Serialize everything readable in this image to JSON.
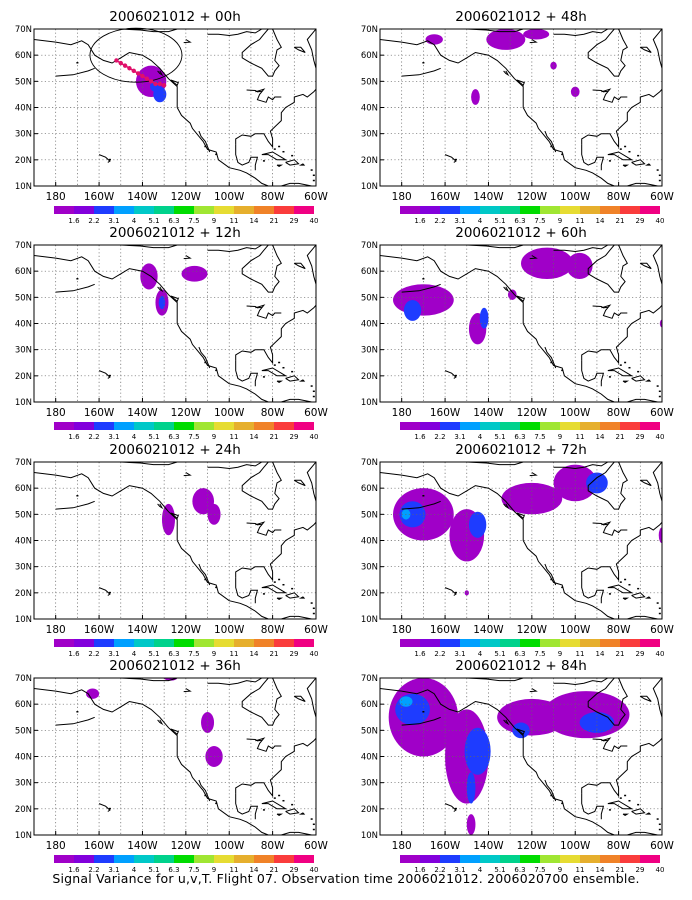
{
  "figure": {
    "caption": "Signal Variance for u,v,T. Flight 07. Observation time 2006021012. 2006020700 ensemble.",
    "axis_labels": {
      "y": [
        "10N",
        "20N",
        "30N",
        "40N",
        "50N",
        "60N",
        "70N"
      ],
      "x": [
        "180",
        "160W",
        "140W",
        "120W",
        "100W",
        "80W",
        "60W"
      ]
    },
    "colorbar": {
      "labels": [
        "1.6",
        "2.2",
        "3.1",
        "4",
        "5.1",
        "6.3",
        "7.5",
        "9",
        "11",
        "14",
        "21",
        "29",
        "40"
      ],
      "colors": [
        "#a000c8",
        "#8200dc",
        "#1e3cff",
        "#00a0ff",
        "#00c8c8",
        "#00d28c",
        "#00dc00",
        "#a0e632",
        "#e6dc32",
        "#e6af2d",
        "#f08228",
        "#fa3c3c",
        "#f00082"
      ]
    },
    "grid": "dotted",
    "panels": [
      {
        "title": "2006021012 + 00h",
        "col": 0,
        "row": 0,
        "track_color": "#e0106a",
        "blobs": [
          [
            -136,
            50,
            7,
            6,
            0
          ],
          [
            -132,
            45,
            3,
            3,
            1
          ],
          [
            -134,
            48,
            2.5,
            2,
            1
          ]
        ]
      },
      {
        "title": "2006021012 + 12h",
        "col": 0,
        "row": 1,
        "blobs": [
          [
            -137,
            58,
            4,
            5,
            0
          ],
          [
            -131,
            48,
            3,
            5,
            0
          ],
          [
            -131,
            48,
            1.5,
            2.5,
            1
          ],
          [
            -116,
            59,
            6,
            3,
            0
          ]
        ]
      },
      {
        "title": "2006021012 + 24h",
        "col": 0,
        "row": 2,
        "blobs": [
          [
            -128,
            48,
            3,
            6,
            0
          ],
          [
            -112,
            55,
            5,
            5,
            0
          ],
          [
            -107,
            50,
            3,
            4,
            0
          ]
        ]
      },
      {
        "title": "2006021012 + 36h",
        "col": 0,
        "row": 3,
        "blobs": [
          [
            -163,
            64,
            3,
            2,
            0
          ],
          [
            -110,
            53,
            3,
            4,
            0
          ],
          [
            -107,
            40,
            4,
            4,
            0
          ],
          [
            -127,
            70,
            3,
            1,
            0
          ]
        ]
      },
      {
        "title": "2006021012 + 48h",
        "col": 1,
        "row": 0,
        "blobs": [
          [
            -165,
            66,
            4,
            2,
            0
          ],
          [
            -132,
            66,
            9,
            4,
            0
          ],
          [
            -118,
            68,
            6,
            2,
            0
          ],
          [
            -146,
            44,
            2,
            3,
            0
          ],
          [
            -100,
            46,
            2,
            2,
            0
          ],
          [
            -110,
            56,
            1.5,
            1.5,
            0
          ]
        ]
      },
      {
        "title": "2006021012 + 60h",
        "col": 1,
        "row": 1,
        "blobs": [
          [
            -170,
            49,
            14,
            6,
            0
          ],
          [
            -175,
            45,
            4,
            4,
            1
          ],
          [
            -145,
            38,
            4,
            6,
            0
          ],
          [
            -142,
            42,
            2,
            4,
            1
          ],
          [
            -113,
            63,
            12,
            6,
            0
          ],
          [
            -98,
            62,
            6,
            5,
            0
          ],
          [
            -129,
            51,
            2,
            2,
            0
          ],
          [
            -60,
            40,
            1,
            1.5,
            0
          ]
        ]
      },
      {
        "title": "2006021012 + 72h",
        "col": 1,
        "row": 2,
        "blobs": [
          [
            -170,
            50,
            14,
            10,
            0
          ],
          [
            -175,
            50,
            6,
            5,
            1
          ],
          [
            -178,
            50,
            2,
            2,
            2
          ],
          [
            -150,
            42,
            8,
            10,
            0
          ],
          [
            -145,
            46,
            4,
            5,
            1
          ],
          [
            -120,
            56,
            14,
            6,
            0
          ],
          [
            -100,
            62,
            10,
            7,
            0
          ],
          [
            -90,
            62,
            5,
            4,
            1
          ],
          [
            -60,
            42,
            1.5,
            3,
            0
          ],
          [
            -150,
            20,
            1,
            1,
            0
          ]
        ]
      },
      {
        "title": "2006021012 + 84h",
        "col": 1,
        "row": 3,
        "blobs": [
          [
            -170,
            55,
            16,
            15,
            0
          ],
          [
            -175,
            58,
            8,
            6,
            1
          ],
          [
            -178,
            61,
            3,
            2,
            2
          ],
          [
            -150,
            40,
            10,
            18,
            0
          ],
          [
            -145,
            42,
            6,
            9,
            1
          ],
          [
            -148,
            28,
            2,
            6,
            1
          ],
          [
            -148,
            14,
            2,
            4,
            0
          ],
          [
            -120,
            55,
            16,
            7,
            0
          ],
          [
            -95,
            56,
            20,
            9,
            0
          ],
          [
            -90,
            53,
            8,
            4,
            1
          ],
          [
            -125,
            50,
            4,
            3,
            1
          ]
        ]
      }
    ]
  }
}
